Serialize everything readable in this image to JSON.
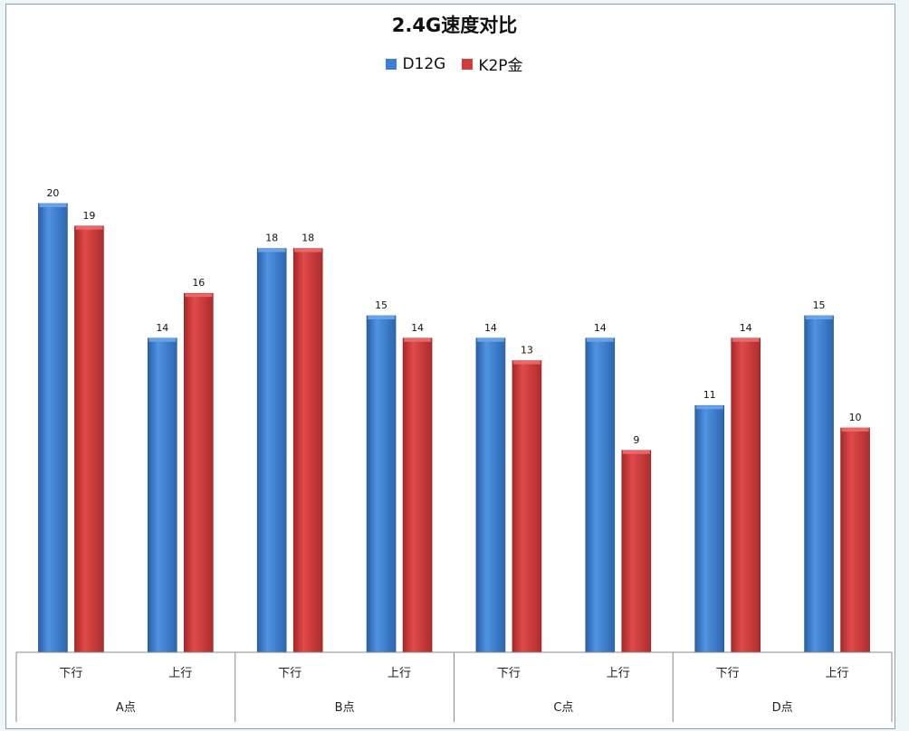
{
  "chart_data": {
    "type": "bar",
    "title": "2.4G速度对比",
    "series": [
      {
        "name": "D12G",
        "color": "#3d7fd0",
        "values": [
          20,
          14,
          18,
          15,
          14,
          14,
          11,
          15
        ]
      },
      {
        "name": "K2P金",
        "color": "#d33c3c",
        "values": [
          19,
          16,
          18,
          14,
          13,
          9,
          14,
          10
        ]
      }
    ],
    "categories": [
      "下行",
      "上行",
      "下行",
      "上行",
      "下行",
      "上行",
      "下行",
      "上行"
    ],
    "groups": [
      "A点",
      "B点",
      "C点",
      "D点"
    ],
    "ylim": [
      0,
      20
    ],
    "legend_position": "top"
  }
}
